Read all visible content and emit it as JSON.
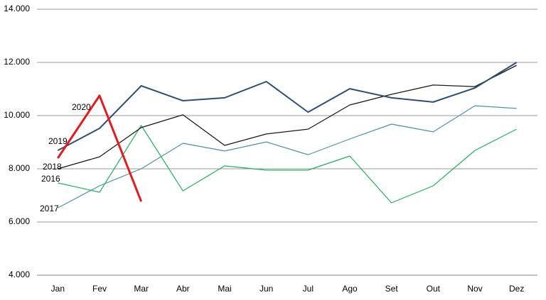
{
  "chart_data": {
    "type": "line",
    "categories": [
      "Jan",
      "Fev",
      "Mar",
      "Abr",
      "Mai",
      "Jun",
      "Jul",
      "Ago",
      "Set",
      "Out",
      "Nov",
      "Dez"
    ],
    "series": [
      {
        "name": "2017",
        "color": "#4a93a8",
        "values": [
          6530,
          7360,
          8000,
          8960,
          8670,
          9010,
          8530,
          9120,
          9680,
          9390,
          10370,
          10270
        ]
      },
      {
        "name": "2016",
        "color": "#1db35a",
        "values": [
          7470,
          7120,
          9630,
          7170,
          8110,
          7950,
          7950,
          8480,
          6720,
          7360,
          8690,
          9490
        ]
      },
      {
        "name": "2018",
        "color": "#1a1a1a",
        "values": [
          8000,
          8450,
          9550,
          10030,
          8880,
          9310,
          9490,
          10400,
          10800,
          11150,
          11090,
          11890
        ]
      },
      {
        "name": "2019",
        "color": "#2b4f7a",
        "values": [
          8690,
          9520,
          11120,
          10560,
          10670,
          11280,
          10130,
          11010,
          10670,
          10510,
          11040,
          12000
        ]
      },
      {
        "name": "2020",
        "color": "#e8191c",
        "values": [
          8400,
          10750,
          6770,
          null,
          null,
          null,
          null,
          null,
          null,
          null,
          null,
          null
        ]
      }
    ],
    "ylim": [
      4000,
      14000
    ],
    "yticks": [
      {
        "value": 4000,
        "label": "4.000"
      },
      {
        "value": 6000,
        "label": "6.000"
      },
      {
        "value": 8000,
        "label": "8.000"
      },
      {
        "value": 10000,
        "label": "10.000"
      },
      {
        "value": 12000,
        "label": "12.000"
      },
      {
        "value": 14000,
        "label": "14.000"
      }
    ],
    "grid": true
  }
}
